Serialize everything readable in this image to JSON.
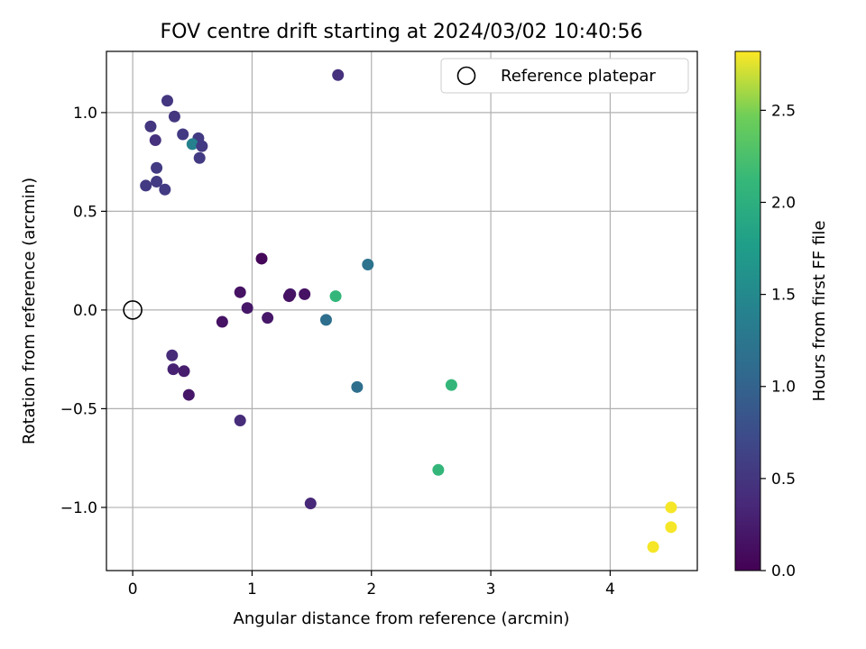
{
  "chart_data": {
    "type": "scatter",
    "title": "FOV centre drift starting at 2024/03/02 10:40:56",
    "xlabel": "Angular distance from reference (arcmin)",
    "ylabel": "Rotation from reference (arcmin)",
    "xlim": [
      -0.22,
      4.73
    ],
    "ylim": [
      -1.32,
      1.31
    ],
    "xticks": [
      0,
      1,
      2,
      3,
      4
    ],
    "yticks": [
      -1.0,
      -0.5,
      0.0,
      0.5,
      1.0
    ],
    "xtick_labels": [
      "0",
      "1",
      "2",
      "3",
      "4"
    ],
    "ytick_labels": [
      "−1.0",
      "−0.5",
      "0.0",
      "0.5",
      "1.0"
    ],
    "grid": true,
    "legend": {
      "position": "top-right",
      "label": "Reference platepar"
    },
    "reference_point": {
      "x": 0,
      "y": 0
    },
    "colorbar": {
      "label": "Hours from first FF file",
      "colormap": "viridis",
      "range": [
        0,
        2.82
      ],
      "ticks": [
        0.0,
        0.5,
        1.0,
        1.5,
        2.0,
        2.5
      ],
      "tick_labels": [
        "0.0",
        "0.5",
        "1.0",
        "1.5",
        "2.0",
        "2.5"
      ]
    },
    "points": [
      {
        "x": 1.72,
        "y": 1.19,
        "h": 0.45
      },
      {
        "x": 0.29,
        "y": 1.06,
        "h": 0.5
      },
      {
        "x": 0.35,
        "y": 0.98,
        "h": 0.5
      },
      {
        "x": 0.15,
        "y": 0.93,
        "h": 0.5
      },
      {
        "x": 0.42,
        "y": 0.89,
        "h": 0.55
      },
      {
        "x": 0.19,
        "y": 0.86,
        "h": 0.45
      },
      {
        "x": 0.55,
        "y": 0.87,
        "h": 0.55
      },
      {
        "x": 0.5,
        "y": 0.84,
        "h": 1.4
      },
      {
        "x": 0.58,
        "y": 0.83,
        "h": 0.55
      },
      {
        "x": 0.56,
        "y": 0.77,
        "h": 0.55
      },
      {
        "x": 0.2,
        "y": 0.72,
        "h": 0.55
      },
      {
        "x": 0.2,
        "y": 0.65,
        "h": 0.55
      },
      {
        "x": 0.11,
        "y": 0.63,
        "h": 0.55
      },
      {
        "x": 0.27,
        "y": 0.61,
        "h": 0.55
      },
      {
        "x": 1.08,
        "y": 0.26,
        "h": 0.05
      },
      {
        "x": 1.97,
        "y": 0.23,
        "h": 1.2
      },
      {
        "x": 0.9,
        "y": 0.09,
        "h": 0.15
      },
      {
        "x": 1.32,
        "y": 0.08,
        "h": 0.2
      },
      {
        "x": 1.44,
        "y": 0.08,
        "h": 0.15
      },
      {
        "x": 1.31,
        "y": 0.07,
        "h": 0.15
      },
      {
        "x": 1.7,
        "y": 0.07,
        "h": 2.1
      },
      {
        "x": 0.96,
        "y": 0.01,
        "h": 0.2
      },
      {
        "x": 1.13,
        "y": -0.04,
        "h": 0.2
      },
      {
        "x": 0.75,
        "y": -0.06,
        "h": 0.15
      },
      {
        "x": 1.62,
        "y": -0.05,
        "h": 1.15
      },
      {
        "x": 0.33,
        "y": -0.23,
        "h": 0.4
      },
      {
        "x": 0.34,
        "y": -0.3,
        "h": 0.3
      },
      {
        "x": 0.43,
        "y": -0.31,
        "h": 0.25
      },
      {
        "x": 0.47,
        "y": -0.43,
        "h": 0.2
      },
      {
        "x": 1.88,
        "y": -0.39,
        "h": 1.15
      },
      {
        "x": 2.67,
        "y": -0.38,
        "h": 2.1
      },
      {
        "x": 0.9,
        "y": -0.56,
        "h": 0.4
      },
      {
        "x": 2.56,
        "y": -0.81,
        "h": 2.1
      },
      {
        "x": 1.49,
        "y": -0.98,
        "h": 0.35
      },
      {
        "x": 4.51,
        "y": -1.0,
        "h": 2.8
      },
      {
        "x": 4.51,
        "y": -1.1,
        "h": 2.8
      },
      {
        "x": 4.36,
        "y": -1.2,
        "h": 2.8
      }
    ]
  }
}
